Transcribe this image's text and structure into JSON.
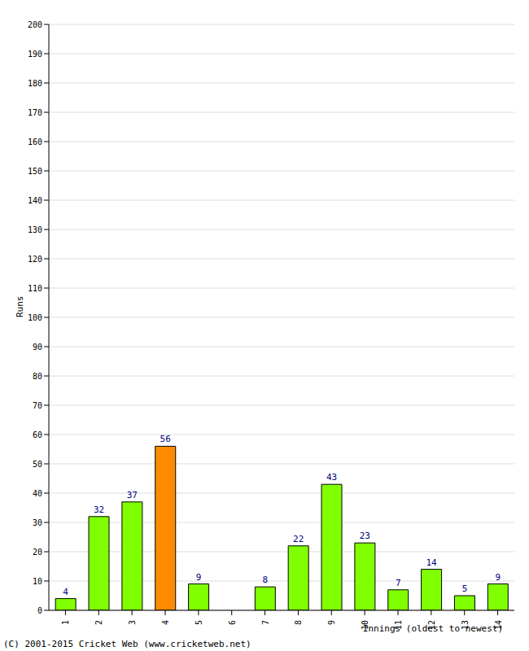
{
  "chart_data": {
    "type": "bar",
    "x_label": "Innings (oldest to newest)",
    "y_label": "Runs",
    "annotations": [
      "(C) 2001-2015 Cricket Web (www.cricketweb.net)"
    ],
    "categories": [
      "1",
      "2",
      "3",
      "4",
      "5",
      "6",
      "7",
      "8",
      "9",
      "10",
      "11",
      "12",
      "13",
      "14"
    ],
    "values": [
      4,
      32,
      37,
      56,
      9,
      0,
      8,
      22,
      43,
      23,
      7,
      14,
      5,
      9
    ],
    "colors": [
      "#80ff00",
      "#80ff00",
      "#80ff00",
      "#ff8c00",
      "#80ff00",
      "#80ff00",
      "#80ff00",
      "#80ff00",
      "#80ff00",
      "#80ff00",
      "#80ff00",
      "#80ff00",
      "#80ff00",
      "#80ff00"
    ],
    "ylim": [
      0,
      200
    ],
    "yticks": [
      0,
      10,
      20,
      30,
      40,
      50,
      60,
      70,
      80,
      90,
      100,
      110,
      120,
      130,
      140,
      150,
      160,
      170,
      180,
      190,
      200
    ],
    "grid": true,
    "data_labels": true
  }
}
